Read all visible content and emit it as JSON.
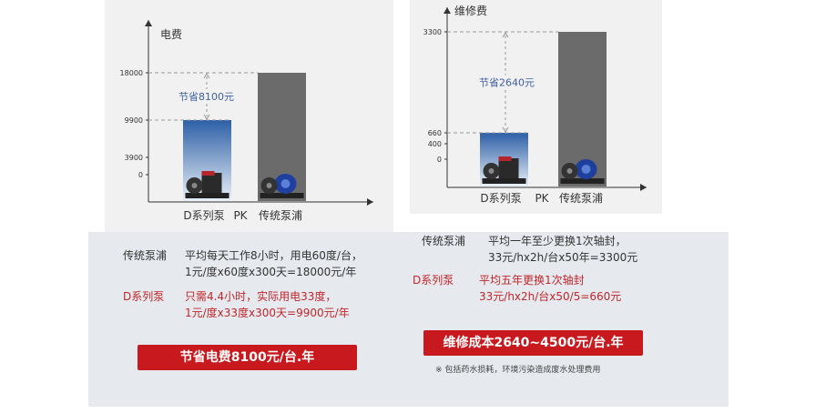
{
  "chart_data": [
    {
      "type": "bar",
      "ylabel": "电费",
      "categories": [
        "D系列泵",
        "传统泵浦"
      ],
      "separator": "PK",
      "values": [
        9900,
        18000
      ],
      "yticks": [
        0,
        3900,
        9900,
        18000
      ],
      "annotation": "节省8100元",
      "colors": [
        "#2d5fa6",
        "#6b6b6b"
      ]
    },
    {
      "type": "bar",
      "ylabel": "维修费",
      "categories": [
        "D系列泵",
        "传统泵浦"
      ],
      "separator": "PK",
      "values": [
        660,
        3300
      ],
      "yticks": [
        0,
        400,
        660,
        3300
      ],
      "annotation": "节省2640元",
      "colors": [
        "#2d5fa6",
        "#6b6b6b"
      ]
    }
  ],
  "left_text": {
    "trad_label": "传统泵浦",
    "trad_line1": "平均每天工作8小时，用电60度/台，",
    "trad_line2": "1元/度x60度x300天=18000元/年",
    "d_label": "D系列泵",
    "d_line1": "只需4.4小时，实际用电33度，",
    "d_line2": "1元/度x33度x300天=9900元/年",
    "banner": "节省电费8100元/台.年"
  },
  "right_text": {
    "trad_label": "传统泵浦",
    "trad_line1": "平均一年至少更换1次轴封，",
    "trad_line2": "33元/hx2h/台x50年=3300元",
    "d_label": "D系列泵",
    "d_line1": "平均五年更换1次轴封",
    "d_line2": "33元/hx2h/台x50/5=660元",
    "banner": "维修成本2640~4500元/台.年",
    "note": "※ 包括药水损耗，环境污染造成废水处理费用"
  }
}
